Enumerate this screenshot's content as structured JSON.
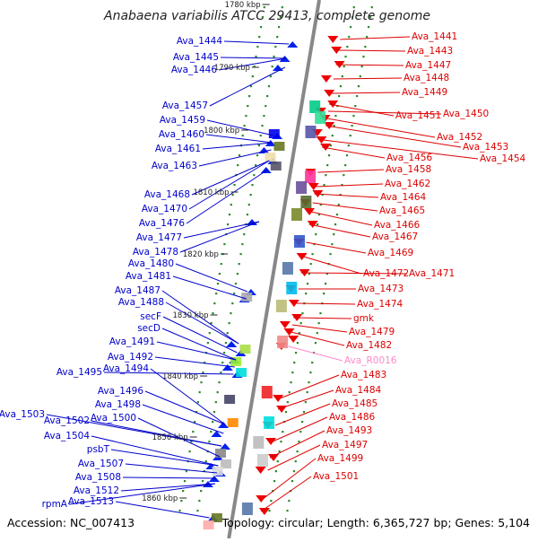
{
  "title": "Anabaena variabilis ATCC 29413, complete genome",
  "footer": {
    "accession": "Accession: NC_007413",
    "summary": "Topology: circular; Length: 6,365,727 bp; Genes: 5,104"
  },
  "colors": {
    "minus_label": "#0000cc",
    "plus_label": "#dd0000",
    "rna_label": "#ff88cc",
    "dots": "#2a8a2a"
  },
  "kbp_marks": [
    "1780 kbp",
    "1790 kbp",
    "1800 kbp",
    "1810 kbp",
    "1820 kbp",
    "1830 kbp",
    "1840 kbp",
    "1850 kbp",
    "1860 kbp"
  ],
  "left_labels": [
    "Ava_1444",
    "Ava_1445",
    "Ava_1446",
    "Ava_1457",
    "Ava_1459",
    "Ava_1460",
    "Ava_1461",
    "Ava_1463",
    "Ava_1468",
    "Ava_1470",
    "Ava_1476",
    "Ava_1477",
    "Ava_1478",
    "Ava_1480",
    "Ava_1481",
    "Ava_1487",
    "Ava_1488",
    "secF",
    "secD",
    "Ava_1491",
    "Ava_1492",
    "Ava_1495",
    "Ava_1494",
    "Ava_1496",
    "Ava_1498",
    "Ava_1503",
    "Ava_1502",
    "Ava_1500",
    "Ava_1504",
    "psbT",
    "Ava_1507",
    "Ava_1508",
    "Ava_1512",
    "rpmA",
    "Ava_1513"
  ],
  "right_labels": [
    "Ava_1441",
    "Ava_1443",
    "Ava_1447",
    "Ava_1448",
    "Ava_1449",
    "Ava_1451",
    "Ava_1450",
    "Ava_1452",
    "Ava_1453",
    "Ava_1454",
    "Ava_1456",
    "Ava_1458",
    "Ava_1462",
    "Ava_1464",
    "Ava_1465",
    "Ava_1466",
    "Ava_1467",
    "Ava_1469",
    "Ava_1472",
    "Ava_1471",
    "Ava_1473",
    "Ava_1474",
    "gmk",
    "Ava_1479",
    "Ava_1482",
    "Ava_R0016",
    "Ava_1483",
    "Ava_1484",
    "Ava_1485",
    "Ava_1486",
    "Ava_1493",
    "Ava_1497",
    "Ava_1499",
    "Ava_1501"
  ]
}
